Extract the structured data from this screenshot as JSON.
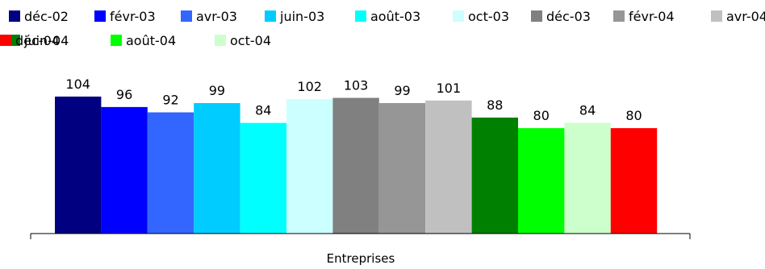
{
  "chart_data": {
    "type": "bar",
    "categories": [
      "Entreprises"
    ],
    "series": [
      {
        "name": "déc-02",
        "values": [
          104
        ],
        "color": "#000080"
      },
      {
        "name": "févr-03",
        "values": [
          96
        ],
        "color": "#0000FF"
      },
      {
        "name": "avr-03",
        "values": [
          92
        ],
        "color": "#3366FF"
      },
      {
        "name": "juin-03",
        "values": [
          99
        ],
        "color": "#00CCFF"
      },
      {
        "name": "août-03",
        "values": [
          84
        ],
        "color": "#00FFFF"
      },
      {
        "name": "oct-03",
        "values": [
          102
        ],
        "color": "#CCFFFF"
      },
      {
        "name": "déc-03",
        "values": [
          103
        ],
        "color": "#808080"
      },
      {
        "name": "févr-04",
        "values": [
          99
        ],
        "color": "#969696"
      },
      {
        "name": "avr-04",
        "values": [
          101
        ],
        "color": "#C0C0C0"
      },
      {
        "name": "juin-04",
        "values": [
          88
        ],
        "color": "#008000"
      },
      {
        "name": "août-04",
        "values": [
          80
        ],
        "color": "#00FF00"
      },
      {
        "name": "oct-04",
        "values": [
          84
        ],
        "color": "#CCFFCC"
      },
      {
        "name": "déc-04",
        "values": [
          80
        ],
        "color": "#FF0000"
      }
    ],
    "ylim": [
      0,
      120
    ],
    "legend_position": "top",
    "data_labels": true,
    "grid": false
  }
}
